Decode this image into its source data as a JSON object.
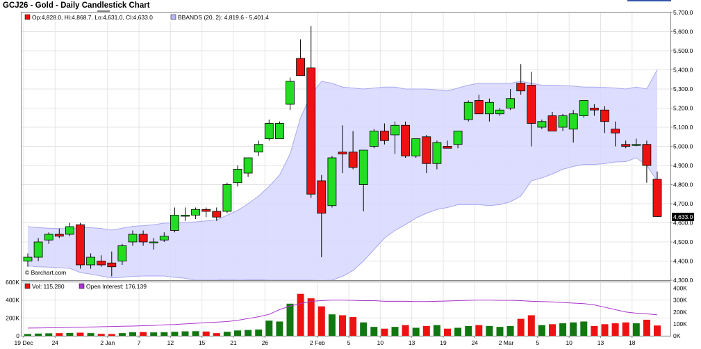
{
  "title": "GCJ26 - Gold - Daily Candlestick Chart",
  "colors": {
    "up": "#22dd22",
    "down": "#ee1111",
    "vol_up": "#117711",
    "vol_down": "#ee1111",
    "bands_fill": "#d7d7ff",
    "bands_line": "#a8a8f0",
    "oi_line": "#aa33cc",
    "last_price_bg": "#000000"
  },
  "price_legend": {
    "ohlc": "Op:4,828.0, Hi:4,868.7, Lo:4,631.0, Cl:4,633.0",
    "bbands": "BBANDS (20, 2): 4,819.6 - 5,401.4"
  },
  "volume_legend": {
    "vol": "Vol: 115,280",
    "oi": "Open Interest: 176,139"
  },
  "watermark": "© Barchart.com",
  "last_price": "4,633.0",
  "top_right_label": "",
  "chart_data": [
    {
      "type": "candlestick",
      "title": "GCJ26 - Gold - Daily Candlestick Chart",
      "y_ticks": [
        "5,700.0",
        "5,600.0",
        "5,500.0",
        "5,400.0",
        "5,300.0",
        "5,200.0",
        "5,100.0",
        "5,000.0",
        "4,900.0",
        "4,800.0",
        "4,700.0",
        "4,600.0",
        "4,500.0",
        "4,400.0",
        "4,300.0"
      ],
      "ylim": [
        4300,
        5700
      ],
      "x_ticks": [
        {
          "index": 0,
          "label": "19 Dec"
        },
        {
          "index": 3,
          "label": "24"
        },
        {
          "index": 8,
          "label": "2 Jan"
        },
        {
          "index": 11,
          "label": "7"
        },
        {
          "index": 14,
          "label": "12"
        },
        {
          "index": 17,
          "label": "15"
        },
        {
          "index": 20,
          "label": "21"
        },
        {
          "index": 23,
          "label": "26"
        },
        {
          "index": 28,
          "label": "2 Feb"
        },
        {
          "index": 31,
          "label": "5"
        },
        {
          "index": 34,
          "label": "10"
        },
        {
          "index": 37,
          "label": "13"
        },
        {
          "index": 40,
          "label": "19"
        },
        {
          "index": 43,
          "label": "24"
        },
        {
          "index": 46,
          "label": "2 Mar"
        },
        {
          "index": 49,
          "label": "5"
        },
        {
          "index": 52,
          "label": "10"
        },
        {
          "index": 55,
          "label": "13"
        },
        {
          "index": 58,
          "label": "18"
        }
      ],
      "candles": [
        {
          "o": 4400,
          "h": 4440,
          "l": 4370,
          "c": 4420
        },
        {
          "o": 4420,
          "h": 4520,
          "l": 4400,
          "c": 4500
        },
        {
          "o": 4510,
          "h": 4550,
          "l": 4490,
          "c": 4540
        },
        {
          "o": 4540,
          "h": 4570,
          "l": 4520,
          "c": 4530
        },
        {
          "o": 4540,
          "h": 4600,
          "l": 4530,
          "c": 4580
        },
        {
          "o": 4590,
          "h": 4600,
          "l": 4360,
          "c": 4380
        },
        {
          "o": 4380,
          "h": 4440,
          "l": 4360,
          "c": 4420
        },
        {
          "o": 4400,
          "h": 4430,
          "l": 4370,
          "c": 4380
        },
        {
          "o": 4390,
          "h": 4450,
          "l": 4320,
          "c": 4370
        },
        {
          "o": 4400,
          "h": 4490,
          "l": 4380,
          "c": 4480
        },
        {
          "o": 4500,
          "h": 4560,
          "l": 4480,
          "c": 4540
        },
        {
          "o": 4540,
          "h": 4560,
          "l": 4480,
          "c": 4500
        },
        {
          "o": 4500,
          "h": 4520,
          "l": 4460,
          "c": 4500
        },
        {
          "o": 4510,
          "h": 4550,
          "l": 4500,
          "c": 4530
        },
        {
          "o": 4560,
          "h": 4680,
          "l": 4550,
          "c": 4640
        },
        {
          "o": 4640,
          "h": 4680,
          "l": 4610,
          "c": 4640
        },
        {
          "o": 4640,
          "h": 4680,
          "l": 4620,
          "c": 4670
        },
        {
          "o": 4670,
          "h": 4680,
          "l": 4630,
          "c": 4660
        },
        {
          "o": 4660,
          "h": 4680,
          "l": 4610,
          "c": 4630
        },
        {
          "o": 4660,
          "h": 4810,
          "l": 4650,
          "c": 4800
        },
        {
          "o": 4810,
          "h": 4900,
          "l": 4790,
          "c": 4880
        },
        {
          "o": 4860,
          "h": 4940,
          "l": 4840,
          "c": 4940
        },
        {
          "o": 4970,
          "h": 5030,
          "l": 4950,
          "c": 5010
        },
        {
          "o": 5040,
          "h": 5140,
          "l": 5030,
          "c": 5120
        },
        {
          "o": 5040,
          "h": 5130,
          "l": 5040,
          "c": 5120
        },
        {
          "o": 5220,
          "h": 5360,
          "l": 5190,
          "c": 5340
        },
        {
          "o": 5460,
          "h": 5560,
          "l": 5380,
          "c": 5370
        },
        {
          "o": 5410,
          "h": 5630,
          "l": 4730,
          "c": 4750
        },
        {
          "o": 4820,
          "h": 4850,
          "l": 4420,
          "c": 4650
        },
        {
          "o": 4690,
          "h": 4950,
          "l": 4680,
          "c": 4940
        },
        {
          "o": 4970,
          "h": 5110,
          "l": 4860,
          "c": 4960
        },
        {
          "o": 4970,
          "h": 5080,
          "l": 4880,
          "c": 4890
        },
        {
          "o": 4800,
          "h": 4970,
          "l": 4660,
          "c": 4980
        },
        {
          "o": 5000,
          "h": 5090,
          "l": 4990,
          "c": 5080
        },
        {
          "o": 5080,
          "h": 5120,
          "l": 5010,
          "c": 5030
        },
        {
          "o": 5060,
          "h": 5130,
          "l": 4960,
          "c": 5110
        },
        {
          "o": 5110,
          "h": 5130,
          "l": 4940,
          "c": 4950
        },
        {
          "o": 4950,
          "h": 5040,
          "l": 4940,
          "c": 5040
        },
        {
          "o": 5050,
          "h": 5060,
          "l": 4860,
          "c": 4910
        },
        {
          "o": 4910,
          "h": 5030,
          "l": 4880,
          "c": 5020
        },
        {
          "o": 5000,
          "h": 5030,
          "l": 4990,
          "c": 4990
        },
        {
          "o": 5010,
          "h": 5080,
          "l": 4990,
          "c": 5080
        },
        {
          "o": 5140,
          "h": 5240,
          "l": 5130,
          "c": 5230
        },
        {
          "o": 5240,
          "h": 5270,
          "l": 5180,
          "c": 5170
        },
        {
          "o": 5170,
          "h": 5250,
          "l": 5130,
          "c": 5230
        },
        {
          "o": 5170,
          "h": 5200,
          "l": 5160,
          "c": 5190
        },
        {
          "o": 5200,
          "h": 5300,
          "l": 5190,
          "c": 5250
        },
        {
          "o": 5330,
          "h": 5430,
          "l": 5270,
          "c": 5290
        },
        {
          "o": 5320,
          "h": 5390,
          "l": 5000,
          "c": 5120
        },
        {
          "o": 5100,
          "h": 5140,
          "l": 5090,
          "c": 5130
        },
        {
          "o": 5160,
          "h": 5180,
          "l": 5080,
          "c": 5080
        },
        {
          "o": 5100,
          "h": 5170,
          "l": 5080,
          "c": 5160
        },
        {
          "o": 5090,
          "h": 5190,
          "l": 5020,
          "c": 5170
        },
        {
          "o": 5160,
          "h": 5240,
          "l": 5150,
          "c": 5240
        },
        {
          "o": 5200,
          "h": 5220,
          "l": 5160,
          "c": 5190
        },
        {
          "o": 5190,
          "h": 5210,
          "l": 5070,
          "c": 5130
        },
        {
          "o": 5090,
          "h": 5130,
          "l": 5000,
          "c": 5070
        },
        {
          "o": 5010,
          "h": 5030,
          "l": 4990,
          "c": 5000
        },
        {
          "o": 5010,
          "h": 5040,
          "l": 5000,
          "c": 5010
        },
        {
          "o": 5010,
          "h": 5030,
          "l": 4810,
          "c": 4900
        },
        {
          "o": 4828,
          "h": 4868.7,
          "l": 4631,
          "c": 4633
        }
      ],
      "bbands_upper": [
        4580,
        4575,
        4572,
        4570,
        4568,
        4575,
        4575,
        4570,
        4562,
        4572,
        4582,
        4585,
        4590,
        4598,
        4600,
        4602,
        4605,
        4610,
        4615,
        4640,
        4665,
        4700,
        4740,
        4790,
        4850,
        4960,
        5150,
        5270,
        5340,
        5330,
        5310,
        5305,
        5300,
        5305,
        5310,
        5310,
        5300,
        5300,
        5300,
        5295,
        5290,
        5305,
        5320,
        5330,
        5330,
        5330,
        5330,
        5340,
        5330,
        5320,
        5320,
        5318,
        5315,
        5310,
        5310,
        5308,
        5305,
        5300,
        5310,
        5300,
        5402
      ],
      "bbands_lower": [
        4375,
        4370,
        4368,
        4365,
        4362,
        4340,
        4332,
        4322,
        4312,
        4315,
        4320,
        4322,
        4322,
        4322,
        4315,
        4310,
        4300,
        4300,
        4300,
        4305,
        4300,
        4302,
        4303,
        4300,
        4300,
        4300,
        4300,
        4300,
        4298,
        4300,
        4320,
        4350,
        4400,
        4460,
        4520,
        4560,
        4590,
        4625,
        4650,
        4670,
        4680,
        4695,
        4695,
        4695,
        4690,
        4695,
        4710,
        4740,
        4820,
        4835,
        4855,
        4880,
        4895,
        4905,
        4905,
        4910,
        4918,
        4920,
        4940,
        4900,
        4820
      ],
      "volume": [
        20000,
        25000,
        28000,
        30000,
        32000,
        35000,
        30000,
        22000,
        20000,
        30000,
        40000,
        42000,
        38000,
        40000,
        45000,
        50000,
        52000,
        48000,
        30000,
        45000,
        60000,
        65000,
        70000,
        170000,
        160000,
        360000,
        470000,
        420000,
        330000,
        240000,
        230000,
        210000,
        150000,
        100000,
        80000,
        100000,
        120000,
        90000,
        110000,
        120000,
        80000,
        90000,
        110000,
        120000,
        110000,
        100000,
        110000,
        190000,
        230000,
        120000,
        130000,
        140000,
        150000,
        160000,
        110000,
        130000,
        140000,
        150000,
        140000,
        180000,
        115280
      ],
      "open_interest": [
        65000,
        66000,
        67000,
        68000,
        70000,
        72000,
        74000,
        76000,
        78000,
        80000,
        82000,
        85000,
        88000,
        92000,
        95000,
        100000,
        105000,
        110000,
        115000,
        120000,
        130000,
        145000,
        160000,
        180000,
        220000,
        250000,
        270000,
        290000,
        295000,
        300000,
        300000,
        298000,
        295000,
        295000,
        290000,
        290000,
        290000,
        288000,
        288000,
        290000,
        292000,
        295000,
        298000,
        300000,
        300000,
        298000,
        298000,
        295000,
        290000,
        288000,
        285000,
        280000,
        275000,
        270000,
        260000,
        240000,
        220000,
        200000,
        190000,
        185000,
        176139
      ],
      "vol_y_ticks_left": [
        "600K",
        "400K",
        "200K",
        "0"
      ],
      "vol_y_ticks_right": [
        "400K",
        "300K",
        "200K",
        "100K",
        "0K"
      ],
      "vol_ylim": [
        0,
        600000
      ],
      "oi_ylim": [
        0,
        450000
      ],
      "legend": [
        "Op:4,828.0, Hi:4,868.7, Lo:4,631.0, Cl:4,633.0",
        "BBANDS (20, 2): 4,819.6 - 5,401.4",
        "Vol: 115,280",
        "Open Interest: 176,139"
      ],
      "grid": true
    }
  ]
}
